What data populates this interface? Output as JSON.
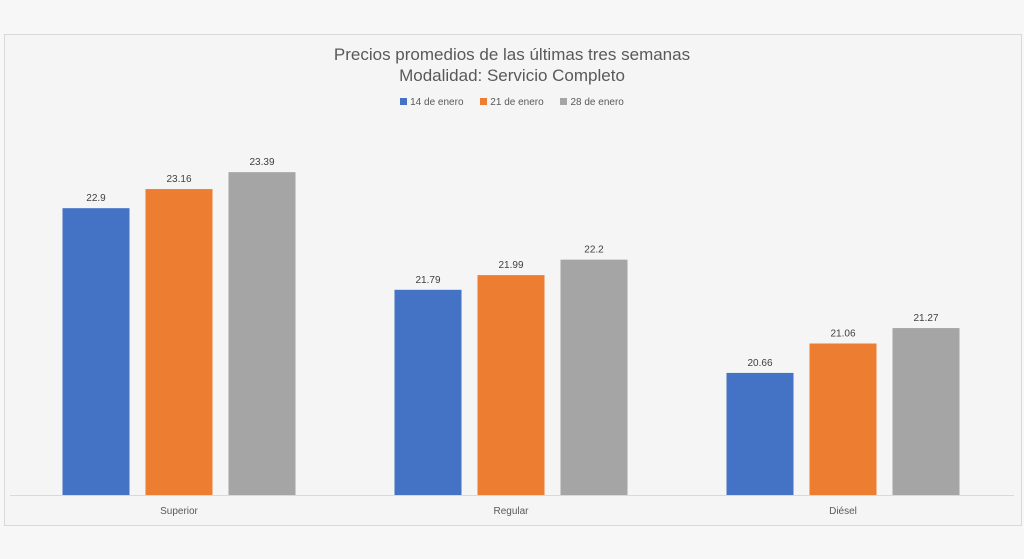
{
  "chart_data": {
    "type": "bar",
    "title": "Precios promedios de las últimas tres semanas",
    "subtitle": "Modalidad: Servicio Completo",
    "categories": [
      "Superior",
      "Regular",
      "Diésel"
    ],
    "series": [
      {
        "name": "14 de enero",
        "color": "#4472c4",
        "values": [
          22.9,
          21.79,
          20.66
        ]
      },
      {
        "name": "21 de enero",
        "color": "#ed7d31",
        "values": [
          23.16,
          21.99,
          21.06
        ]
      },
      {
        "name": "28 de enero",
        "color": "#a5a5a5",
        "values": [
          23.39,
          22.2,
          21.27
        ]
      }
    ],
    "xlabel": "",
    "ylabel": "",
    "ylim": [
      19,
      23.8
    ],
    "grid": false,
    "legend": "top-center"
  }
}
